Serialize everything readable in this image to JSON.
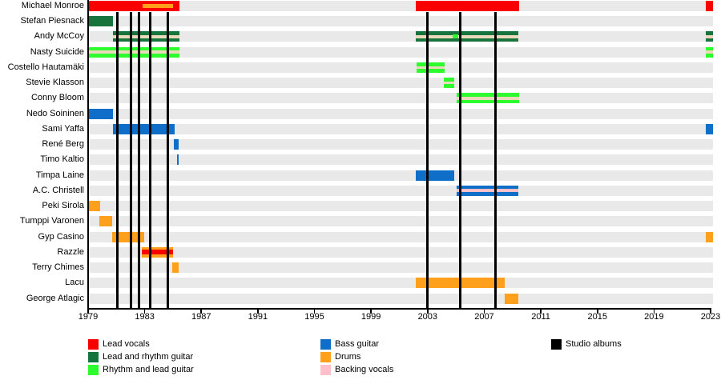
{
  "chart_data": {
    "type": "timeline",
    "description": "Band membership timeline (gantt-style), roles by color, studio albums as vertical lines",
    "x_axis": {
      "start": 1979,
      "end": 2023,
      "tick_years": [
        1979,
        1983,
        1987,
        1991,
        1995,
        1999,
        2003,
        2007,
        2011,
        2015,
        2019,
        2023
      ]
    },
    "colors": {
      "red": "#f80000",
      "darkgreen": "#17743c",
      "brightgreen": "#2dfb2d",
      "blue": "#0e6ec8",
      "orange": "#ffa01d",
      "pink": "#ffc0cb",
      "wheat": "#ead9bb",
      "black": "#000000",
      "row_stripe": "#e9e9e9"
    },
    "members": [
      {
        "name": "Michael Monroe",
        "segments": [
          {
            "from": 1979.0,
            "to": 1985.45,
            "color": "red",
            "overlays": [
              {
                "from": 1982.85,
                "to": 1985.0,
                "color": "orange",
                "h": 5
              }
            ]
          },
          {
            "from": 2002.15,
            "to": 2009.45,
            "color": "red"
          },
          {
            "from": 2022.65,
            "to": 2023.15,
            "color": "red"
          }
        ]
      },
      {
        "name": "Stefan Piesnack",
        "segments": [
          {
            "from": 1979.0,
            "to": 1980.75,
            "color": "darkgreen"
          }
        ]
      },
      {
        "name": "Andy McCoy",
        "segments": [
          {
            "from": 1980.75,
            "to": 1985.45,
            "color": "darkgreen",
            "overlays": [
              {
                "color": "wheat",
                "h": 3.5
              }
            ]
          },
          {
            "from": 2002.15,
            "to": 2009.4,
            "color": "darkgreen",
            "overlays": [
              {
                "color": "wheat",
                "h": 3.5
              },
              {
                "from": 2004.75,
                "to": 2005.15,
                "color": "brightgreen",
                "h": 5
              }
            ]
          },
          {
            "from": 2022.65,
            "to": 2023.15,
            "color": "darkgreen",
            "overlays": [
              {
                "color": "wheat",
                "h": 3.5
              }
            ]
          }
        ]
      },
      {
        "name": "Nasty Suicide",
        "segments": [
          {
            "from": 1979.0,
            "to": 1985.45,
            "color": "brightgreen",
            "overlays": [
              {
                "color": "wheat",
                "h": 3.5
              }
            ]
          },
          {
            "from": 2022.65,
            "to": 2023.15,
            "color": "brightgreen",
            "overlays": [
              {
                "color": "wheat",
                "h": 3.5
              }
            ]
          }
        ]
      },
      {
        "name": "Costello Hautamäki",
        "segments": [
          {
            "from": 2002.2,
            "to": 2004.2,
            "color": "brightgreen",
            "overlays": [
              {
                "color": "wheat",
                "h": 3.5
              }
            ]
          }
        ]
      },
      {
        "name": "Stevie Klasson",
        "segments": [
          {
            "from": 2004.15,
            "to": 2004.9,
            "color": "brightgreen",
            "overlays": [
              {
                "color": "wheat",
                "h": 3.5
              }
            ]
          }
        ]
      },
      {
        "name": "Conny Bloom",
        "segments": [
          {
            "from": 2005.05,
            "to": 2009.45,
            "color": "brightgreen",
            "overlays": [
              {
                "color": "wheat",
                "h": 3.5
              }
            ]
          }
        ]
      },
      {
        "name": "Nedo Soininen",
        "segments": [
          {
            "from": 1979.0,
            "to": 1980.75,
            "color": "blue"
          }
        ]
      },
      {
        "name": "Sami Yaffa",
        "segments": [
          {
            "from": 1980.75,
            "to": 1985.1,
            "color": "blue"
          },
          {
            "from": 2022.65,
            "to": 2023.15,
            "color": "blue"
          }
        ]
      },
      {
        "name": "René Berg",
        "segments": [
          {
            "from": 1985.05,
            "to": 1985.4,
            "color": "blue"
          }
        ]
      },
      {
        "name": "Timo Kaltio",
        "segments": [
          {
            "from": 1985.3,
            "to": 1985.4,
            "color": "blue"
          }
        ]
      },
      {
        "name": "Timpa Laine",
        "segments": [
          {
            "from": 2002.15,
            "to": 2004.9,
            "color": "blue"
          }
        ]
      },
      {
        "name": "A.C. Christell",
        "segments": [
          {
            "from": 2005.05,
            "to": 2009.4,
            "color": "blue",
            "overlays": [
              {
                "color": "pink",
                "h": 4
              }
            ]
          }
        ]
      },
      {
        "name": "Peki Sirola",
        "segments": [
          {
            "from": 1979.0,
            "to": 1979.85,
            "color": "orange"
          }
        ]
      },
      {
        "name": "Tumppi Varonen",
        "segments": [
          {
            "from": 1979.8,
            "to": 1980.7,
            "color": "orange"
          }
        ]
      },
      {
        "name": "Gyp Casino",
        "segments": [
          {
            "from": 1980.7,
            "to": 1982.95,
            "color": "orange"
          },
          {
            "from": 2022.65,
            "to": 2023.15,
            "color": "orange"
          }
        ]
      },
      {
        "name": "Razzle",
        "segments": [
          {
            "from": 1982.8,
            "to": 1985.0,
            "color": "orange",
            "overlays": [
              {
                "color": "red",
                "h": 6
              }
            ]
          }
        ]
      },
      {
        "name": "Terry Chimes",
        "segments": [
          {
            "from": 1984.95,
            "to": 1985.4,
            "color": "orange"
          }
        ]
      },
      {
        "name": "Lacu",
        "segments": [
          {
            "from": 2002.15,
            "to": 2008.45,
            "color": "orange"
          }
        ]
      },
      {
        "name": "George Atlagic",
        "segments": [
          {
            "from": 2008.45,
            "to": 2009.4,
            "color": "orange"
          }
        ]
      }
    ],
    "albums": [
      1981.05,
      1982.05,
      1982.6,
      1983.4,
      1984.65,
      2003.0,
      2005.3,
      2007.8
    ],
    "legend": {
      "columns": [
        [
          {
            "label": "Lead vocals",
            "color": "red"
          },
          {
            "label": "Lead and rhythm guitar",
            "color": "darkgreen"
          },
          {
            "label": "Rhythm and lead guitar",
            "color": "brightgreen"
          }
        ],
        [
          {
            "label": "Bass guitar",
            "color": "blue"
          },
          {
            "label": "Drums",
            "color": "orange"
          },
          {
            "label": "Backing vocals",
            "color": "pink"
          }
        ],
        [
          {
            "label": "Studio albums",
            "color": "black"
          }
        ]
      ]
    }
  }
}
